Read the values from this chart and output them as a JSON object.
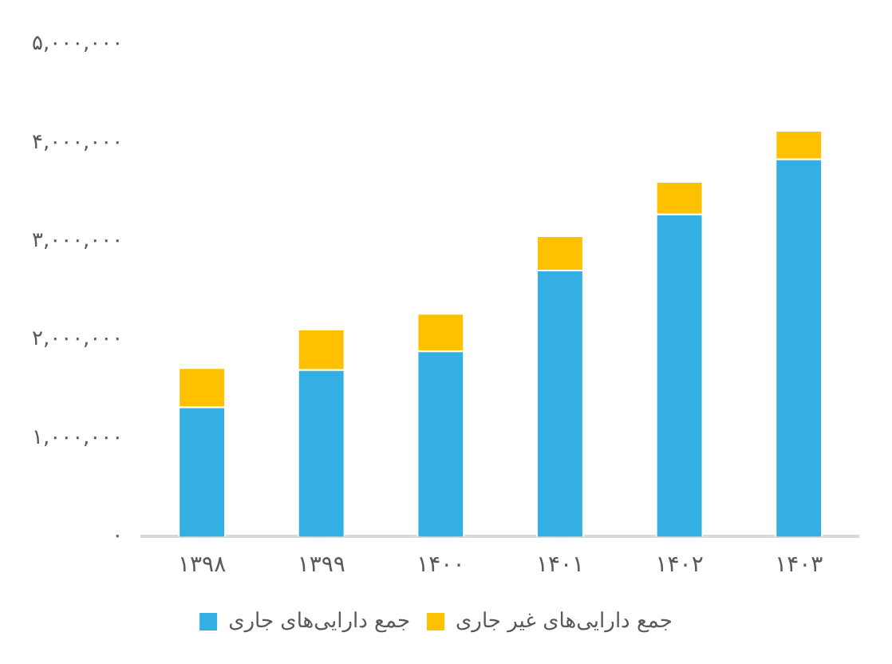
{
  "chart_data": {
    "type": "bar",
    "stacked": true,
    "categories": [
      "۱۳۹۸",
      "۱۳۹۹",
      "۱۴۰۰",
      "۱۴۰۱",
      "۱۴۰۲",
      "۱۴۰۳"
    ],
    "series": [
      {
        "name": "جمع دارایی‌های جاری",
        "color": "#34afe4",
        "values": [
          1320000,
          1700000,
          1890000,
          2710000,
          3280000,
          3840000
        ]
      },
      {
        "name": "جمع دارایی‌های غیر جاری",
        "color": "#ffc000",
        "values": [
          400000,
          410000,
          380000,
          350000,
          330000,
          290000
        ]
      }
    ],
    "ylim": [
      0,
      5000000
    ],
    "yticks": [
      {
        "value": 0,
        "label": "۰"
      },
      {
        "value": 1000000,
        "label": "۱,۰۰۰,۰۰۰"
      },
      {
        "value": 2000000,
        "label": "۲,۰۰۰,۰۰۰"
      },
      {
        "value": 3000000,
        "label": "۳,۰۰۰,۰۰۰"
      },
      {
        "value": 4000000,
        "label": "۴,۰۰۰,۰۰۰"
      },
      {
        "value": 5000000,
        "label": "۵,۰۰۰,۰۰۰"
      }
    ],
    "grid": false,
    "legend": "bottom"
  }
}
